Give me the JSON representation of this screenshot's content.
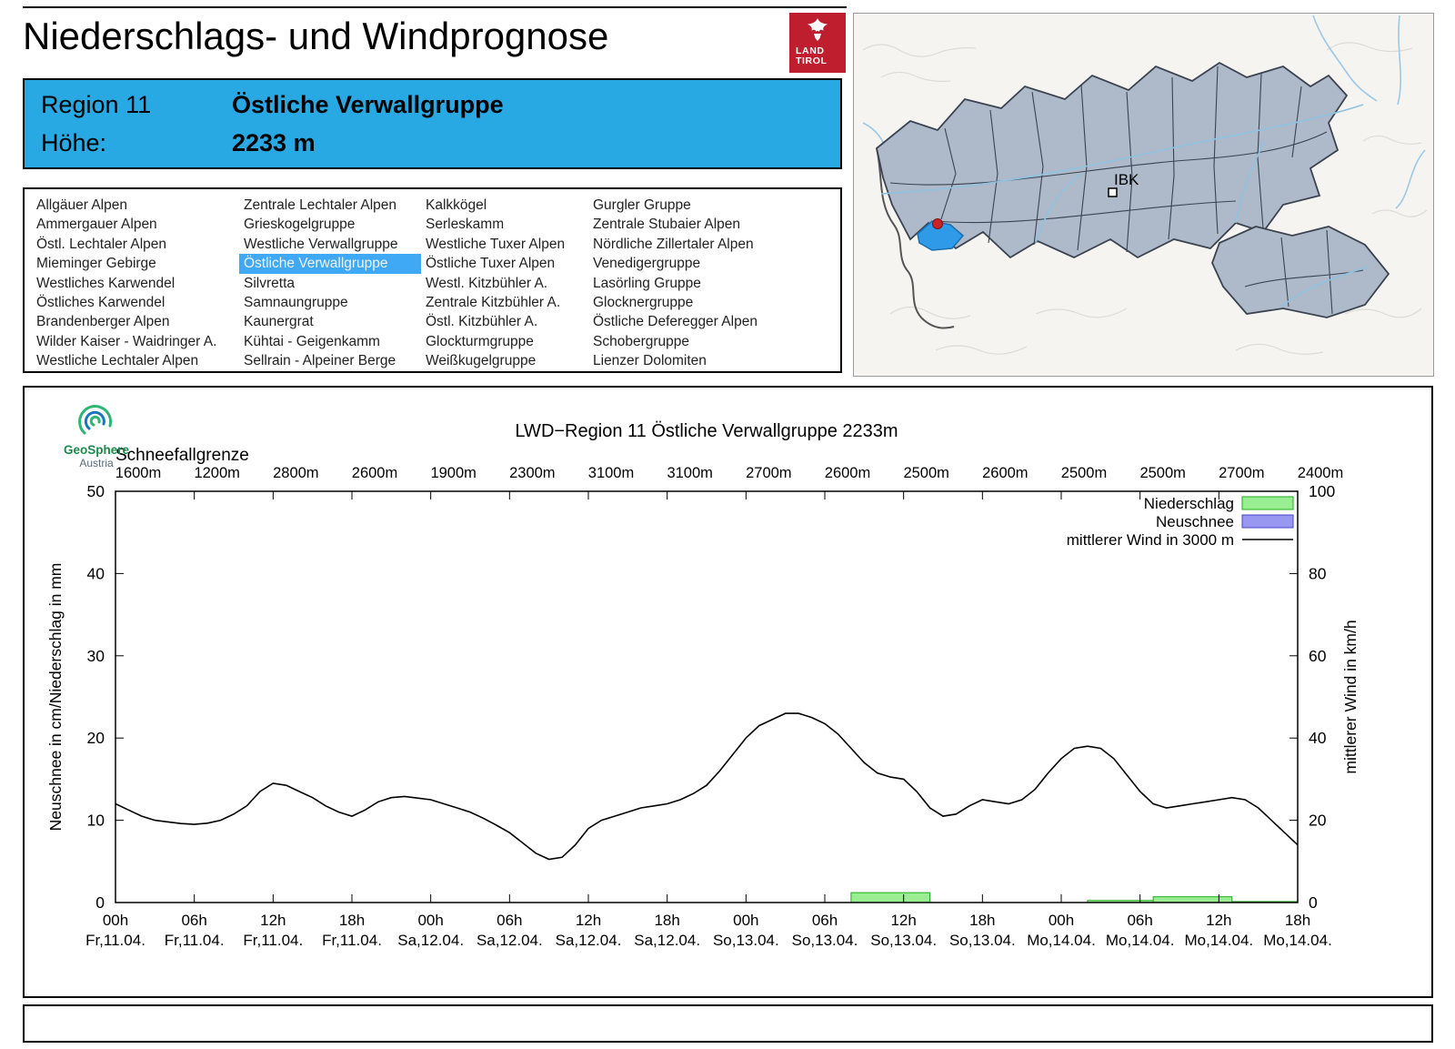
{
  "header": {
    "title": "Niederschlags- und Windprognose",
    "logo_line1": "LAND",
    "logo_line2": "TIROL"
  },
  "region_info": {
    "region_label": "Region 11",
    "region_name": "Östliche Verwallgruppe",
    "altitude_label": "Höhe:",
    "altitude_value": "2233 m"
  },
  "region_list": {
    "selected": "Östliche Verwallgruppe",
    "columns": [
      [
        "Allgäuer Alpen",
        "Ammergauer Alpen",
        "Östl. Lechtaler Alpen",
        "Mieminger Gebirge",
        "Westliches Karwendel",
        "Östliches Karwendel",
        "Brandenberger Alpen",
        "Wilder Kaiser - Waidringer A.",
        "Westliche Lechtaler Alpen"
      ],
      [
        "Zentrale Lechtaler Alpen",
        "Grieskogelgruppe",
        "Westliche Verwallgruppe",
        "Östliche Verwallgruppe",
        "Silvretta",
        "Samnaungruppe",
        "Kaunergrat",
        "Kühtai - Geigenkamm",
        "Sellrain - Alpeiner Berge"
      ],
      [
        "Kalkkögel",
        "Serleskamm",
        "Westliche Tuxer Alpen",
        "Östliche Tuxer Alpen",
        "Westl. Kitzbühler A.",
        "Zentrale Kitzbühler A.",
        "Östl. Kitzbühler A.",
        "Glockturmgruppe",
        "Weißkugelgruppe"
      ],
      [
        "Gurgler Gruppe",
        "Zentrale Stubaier Alpen",
        "Nördliche Zillertaler Alpen",
        "Venedigergruppe",
        "Lasörling Gruppe",
        "Glocknergruppe",
        "Östliche Deferegger Alpen",
        "Schobergruppe",
        "Lienzer Dolomiten"
      ]
    ]
  },
  "map": {
    "city_label": "IBK"
  },
  "geosphere": {
    "line1": "GeoSphere",
    "line2": "Austria"
  },
  "colors": {
    "header_blue": "#29A9E3",
    "selected_blue": "#3FA9F5",
    "logo_red": "#BE1E2D",
    "geosphere_green": "#1b8a4a",
    "geosphere_gray": "#5a6b7a"
  },
  "chart_data": {
    "type": "line",
    "title": "LWD−Region 11 Östliche Verwallgruppe 2233m",
    "snowline_label": "Schneefallgrenze",
    "snowline_values": [
      "1600m",
      "1200m",
      "2800m",
      "2600m",
      "1900m",
      "2300m",
      "3100m",
      "3100m",
      "2700m",
      "2600m",
      "2500m",
      "2600m",
      "2500m",
      "2500m",
      "2700m",
      "2400m"
    ],
    "ylabel_left": "Neuschnee in cm/Niederschlag in mm",
    "ylabel_right": "mittlerer Wind in km/h",
    "ylim_left": [
      0,
      50
    ],
    "ylim_right": [
      0,
      100
    ],
    "yticks_left": [
      0,
      10,
      20,
      30,
      40,
      50
    ],
    "yticks_right": [
      0,
      20,
      40,
      60,
      80,
      100
    ],
    "x_range_hours": [
      0,
      90
    ],
    "x_tick_step_hours": 6,
    "x_hours": [
      "00h",
      "06h",
      "12h",
      "18h",
      "00h",
      "06h",
      "12h",
      "18h",
      "00h",
      "06h",
      "12h",
      "18h",
      "00h",
      "06h",
      "12h",
      "18h"
    ],
    "x_days": [
      "Fr,11.04.",
      "Fr,11.04.",
      "Fr,11.04.",
      "Fr,11.04.",
      "Sa,12.04.",
      "Sa,12.04.",
      "Sa,12.04.",
      "Sa,12.04.",
      "So,13.04.",
      "So,13.04.",
      "So,13.04.",
      "So,13.04.",
      "Mo,14.04.",
      "Mo,14.04.",
      "Mo,14.04.",
      "Mo,14.04."
    ],
    "legend": [
      {
        "label": "Niederschlag",
        "type": "box",
        "fill": "#98ee90",
        "edge": "#22aa22"
      },
      {
        "label": "Neuschnee",
        "type": "box",
        "fill": "#9898f0",
        "edge": "#4444c8"
      },
      {
        "label": "mittlerer Wind in 3000 m",
        "type": "line",
        "color": "#000000"
      }
    ],
    "wind_kmh": [
      [
        0,
        24
      ],
      [
        1,
        22.5
      ],
      [
        2,
        21
      ],
      [
        3,
        20
      ],
      [
        4,
        19.6
      ],
      [
        5,
        19.2
      ],
      [
        6,
        19
      ],
      [
        7,
        19.3
      ],
      [
        8,
        20
      ],
      [
        9,
        21.5
      ],
      [
        10,
        23.5
      ],
      [
        11,
        27
      ],
      [
        12,
        29
      ],
      [
        13,
        28.5
      ],
      [
        14,
        27
      ],
      [
        15,
        25.5
      ],
      [
        16,
        23.5
      ],
      [
        17,
        22
      ],
      [
        18,
        21
      ],
      [
        19,
        22.5
      ],
      [
        20,
        24.5
      ],
      [
        21,
        25.5
      ],
      [
        22,
        25.8
      ],
      [
        23,
        25.4
      ],
      [
        24,
        25
      ],
      [
        25,
        24
      ],
      [
        26,
        23
      ],
      [
        27,
        22
      ],
      [
        28,
        20.5
      ],
      [
        29,
        18.8
      ],
      [
        30,
        17
      ],
      [
        31,
        14.5
      ],
      [
        32,
        12
      ],
      [
        33,
        10.5
      ],
      [
        34,
        11
      ],
      [
        35,
        14
      ],
      [
        36,
        18
      ],
      [
        37,
        20
      ],
      [
        38,
        21
      ],
      [
        39,
        22
      ],
      [
        40,
        23
      ],
      [
        41,
        23.5
      ],
      [
        42,
        24
      ],
      [
        43,
        25
      ],
      [
        44,
        26.5
      ],
      [
        45,
        28.5
      ],
      [
        46,
        32
      ],
      [
        47,
        36
      ],
      [
        48,
        40
      ],
      [
        49,
        43
      ],
      [
        50,
        44.5
      ],
      [
        51,
        46
      ],
      [
        52,
        46
      ],
      [
        53,
        45
      ],
      [
        54,
        43.5
      ],
      [
        55,
        41
      ],
      [
        56,
        37.5
      ],
      [
        57,
        34
      ],
      [
        58,
        31.5
      ],
      [
        59,
        30.5
      ],
      [
        60,
        30
      ],
      [
        61,
        27
      ],
      [
        62,
        23
      ],
      [
        63,
        21
      ],
      [
        64,
        21.5
      ],
      [
        65,
        23.5
      ],
      [
        66,
        25
      ],
      [
        67,
        24.5
      ],
      [
        68,
        24
      ],
      [
        69,
        25
      ],
      [
        70,
        27.5
      ],
      [
        71,
        31.5
      ],
      [
        72,
        35
      ],
      [
        73,
        37.5
      ],
      [
        74,
        38
      ],
      [
        75,
        37.5
      ],
      [
        76,
        35
      ],
      [
        77,
        31
      ],
      [
        78,
        27
      ],
      [
        79,
        24
      ],
      [
        80,
        23
      ],
      [
        81,
        23.5
      ],
      [
        82,
        24
      ],
      [
        83,
        24.5
      ],
      [
        84,
        25
      ],
      [
        85,
        25.5
      ],
      [
        86,
        25
      ],
      [
        87,
        23
      ],
      [
        88,
        20
      ],
      [
        89,
        17
      ],
      [
        90,
        14
      ]
    ],
    "precip_bars_mm": [
      {
        "from": 56,
        "to": 62,
        "mm": 1.2
      },
      {
        "from": 74,
        "to": 79,
        "mm": 0.25
      },
      {
        "from": 79,
        "to": 85,
        "mm": 0.7
      },
      {
        "from": 85,
        "to": 90,
        "mm": 0.12
      }
    ],
    "neuschnee_bars_cm": []
  }
}
